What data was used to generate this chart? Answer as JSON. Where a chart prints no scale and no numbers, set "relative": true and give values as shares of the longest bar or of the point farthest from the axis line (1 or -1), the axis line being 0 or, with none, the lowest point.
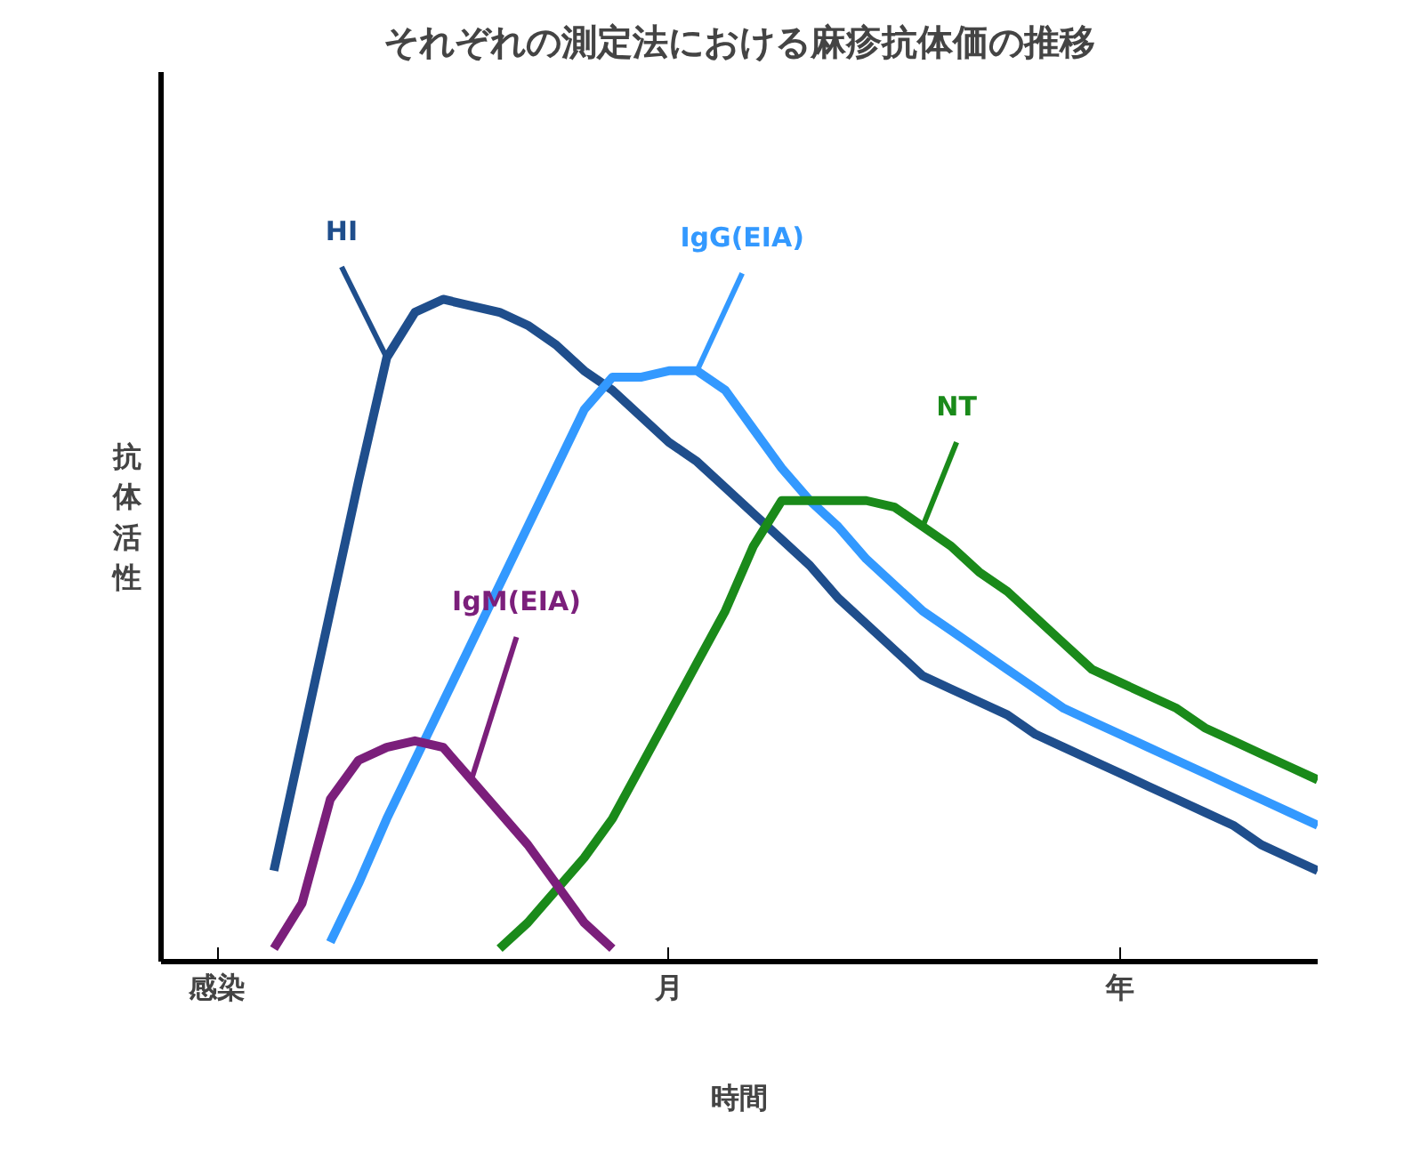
{
  "chart_data": {
    "type": "line",
    "title": "それぞれの測定法における麻疹抗体価の推移",
    "xlabel": "時間",
    "ylabel": "抗体活性",
    "relative": true,
    "grid": false,
    "marker": "none",
    "line_style": "solid",
    "categories": [
      null,
      "感染",
      null,
      null,
      null,
      null,
      null,
      null,
      null,
      null,
      null,
      null,
      null,
      null,
      null,
      null,
      null,
      "月",
      null,
      null,
      null,
      null,
      null,
      null,
      null,
      null,
      null,
      null,
      null,
      null,
      null,
      null,
      null,
      "年",
      null,
      null,
      null,
      null,
      null,
      null,
      null
    ],
    "series": [
      {
        "name": "HI",
        "color": "#1f4e8c",
        "values": [
          null,
          null,
          null,
          0.12,
          0.32,
          0.52,
          0.72,
          0.91,
          0.98,
          1.0,
          0.99,
          0.98,
          0.96,
          0.93,
          0.89,
          0.86,
          0.82,
          0.78,
          0.75,
          0.71,
          0.67,
          0.63,
          0.59,
          0.54,
          0.5,
          0.46,
          0.42,
          0.4,
          0.38,
          0.36,
          0.33,
          0.31,
          0.29,
          0.27,
          0.25,
          0.23,
          0.21,
          0.19,
          0.16,
          0.14,
          0.12
        ]
      },
      {
        "name": "IgG(EIA)",
        "color": "#3399ff",
        "values": [
          null,
          null,
          null,
          null,
          null,
          0.01,
          0.1,
          0.2,
          0.29,
          0.38,
          0.47,
          0.56,
          0.65,
          0.74,
          0.83,
          0.88,
          0.88,
          0.89,
          0.89,
          0.86,
          0.8,
          0.74,
          0.69,
          0.65,
          0.6,
          0.56,
          0.52,
          0.49,
          0.46,
          0.43,
          0.4,
          0.37,
          0.35,
          0.33,
          0.31,
          0.29,
          0.27,
          0.25,
          0.23,
          0.21,
          0.19
        ]
      },
      {
        "name": "NT",
        "color": "#1a8a1a",
        "values": [
          null,
          null,
          null,
          null,
          null,
          null,
          null,
          null,
          null,
          null,
          null,
          0,
          0.04,
          0.09,
          0.14,
          0.2,
          0.28,
          0.36,
          0.44,
          0.52,
          0.62,
          0.69,
          0.69,
          0.69,
          0.69,
          0.68,
          0.65,
          0.62,
          0.58,
          0.55,
          0.51,
          0.47,
          0.43,
          0.41,
          0.39,
          0.37,
          0.34,
          0.32,
          0.3,
          0.28,
          0.26
        ]
      },
      {
        "name": "IgM(EIA)",
        "color": "#7b1f7b",
        "values": [
          null,
          null,
          null,
          0,
          0.07,
          0.23,
          0.29,
          0.31,
          0.32,
          0.31,
          0.26,
          0.21,
          0.16,
          0.1,
          0.04,
          0,
          null,
          null,
          null,
          null,
          null,
          null,
          null,
          null,
          null,
          null,
          null,
          null,
          null,
          null,
          null,
          null,
          null,
          null,
          null,
          null,
          null,
          null,
          null,
          null,
          null
        ]
      }
    ]
  }
}
